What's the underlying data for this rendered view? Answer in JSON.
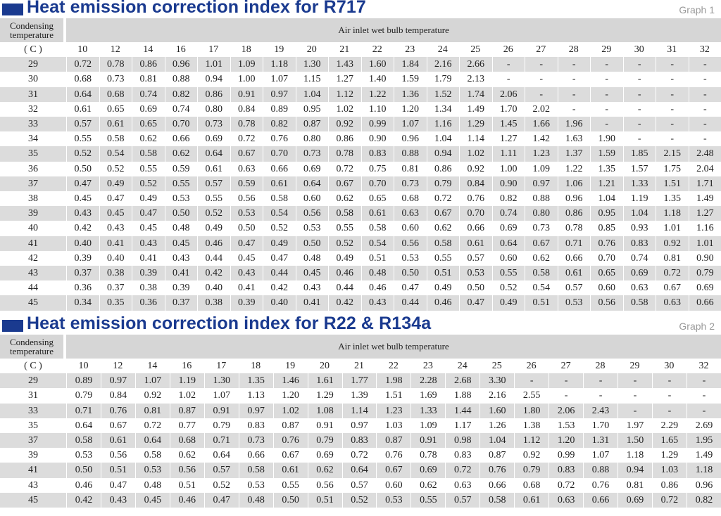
{
  "tables": [
    {
      "title": "Heat emission correction index for R717",
      "graph_label": "Graph 1",
      "row_header": "Condensing temperature",
      "col_header": "Air inlet wet bulb temperature",
      "unit": "( C )",
      "columns": [
        "10",
        "12",
        "14",
        "16",
        "17",
        "18",
        "19",
        "20",
        "21",
        "22",
        "23",
        "24",
        "25",
        "26",
        "27",
        "28",
        "29",
        "30",
        "31",
        "32"
      ],
      "rows": [
        {
          "t": "29",
          "v": [
            "0.72",
            "0.78",
            "0.86",
            "0.96",
            "1.01",
            "1.09",
            "1.18",
            "1.30",
            "1.43",
            "1.60",
            "1.84",
            "2.16",
            "2.66",
            "-",
            "-",
            "-",
            "-",
            "-",
            "-",
            "-"
          ]
        },
        {
          "t": "30",
          "v": [
            "0.68",
            "0.73",
            "0.81",
            "0.88",
            "0.94",
            "1.00",
            "1.07",
            "1.15",
            "1.27",
            "1.40",
            "1.59",
            "1.79",
            "2.13",
            "-",
            "-",
            "-",
            "-",
            "-",
            "-",
            "-"
          ]
        },
        {
          "t": "31",
          "v": [
            "0.64",
            "0.68",
            "0.74",
            "0.82",
            "0.86",
            "0.91",
            "0.97",
            "1.04",
            "1.12",
            "1.22",
            "1.36",
            "1.52",
            "1.74",
            "2.06",
            "-",
            "-",
            "-",
            "-",
            "-",
            "-"
          ]
        },
        {
          "t": "32",
          "v": [
            "0.61",
            "0.65",
            "0.69",
            "0.74",
            "0.80",
            "0.84",
            "0.89",
            "0.95",
            "1.02",
            "1.10",
            "1.20",
            "1.34",
            "1.49",
            "1.70",
            "2.02",
            "-",
            "-",
            "-",
            "-",
            "-"
          ]
        },
        {
          "t": "33",
          "v": [
            "0.57",
            "0.61",
            "0.65",
            "0.70",
            "0.73",
            "0.78",
            "0.82",
            "0.87",
            "0.92",
            "0.99",
            "1.07",
            "1.16",
            "1.29",
            "1.45",
            "1.66",
            "1.96",
            "-",
            "-",
            "-",
            "-"
          ]
        },
        {
          "t": "34",
          "v": [
            "0.55",
            "0.58",
            "0.62",
            "0.66",
            "0.69",
            "0.72",
            "0.76",
            "0.80",
            "0.86",
            "0.90",
            "0.96",
            "1.04",
            "1.14",
            "1.27",
            "1.42",
            "1.63",
            "1.90",
            "-",
            "-",
            "-"
          ]
        },
        {
          "t": "35",
          "v": [
            "0.52",
            "0.54",
            "0.58",
            "0.62",
            "0.64",
            "0.67",
            "0.70",
            "0.73",
            "0.78",
            "0.83",
            "0.88",
            "0.94",
            "1.02",
            "1.11",
            "1.23",
            "1.37",
            "1.59",
            "1.85",
            "2.15",
            "2.48"
          ]
        },
        {
          "t": "36",
          "v": [
            "0.50",
            "0.52",
            "0.55",
            "0.59",
            "0.61",
            "0.63",
            "0.66",
            "0.69",
            "0.72",
            "0.75",
            "0.81",
            "0.86",
            "0.92",
            "1.00",
            "1.09",
            "1.22",
            "1.35",
            "1.57",
            "1.75",
            "2.04"
          ]
        },
        {
          "t": "37",
          "v": [
            "0.47",
            "0.49",
            "0.52",
            "0.55",
            "0.57",
            "0.59",
            "0.61",
            "0.64",
            "0.67",
            "0.70",
            "0.73",
            "0.79",
            "0.84",
            "0.90",
            "0.97",
            "1.06",
            "1.21",
            "1.33",
            "1.51",
            "1.71"
          ]
        },
        {
          "t": "38",
          "v": [
            "0.45",
            "0.47",
            "0.49",
            "0.53",
            "0.55",
            "0.56",
            "0.58",
            "0.60",
            "0.62",
            "0.65",
            "0.68",
            "0.72",
            "0.76",
            "0.82",
            "0.88",
            "0.96",
            "1.04",
            "1.19",
            "1.35",
            "1.49"
          ]
        },
        {
          "t": "39",
          "v": [
            "0.43",
            "0.45",
            "0.47",
            "0.50",
            "0.52",
            "0.53",
            "0.54",
            "0.56",
            "0.58",
            "0.61",
            "0.63",
            "0.67",
            "0.70",
            "0.74",
            "0.80",
            "0.86",
            "0.95",
            "1.04",
            "1.18",
            "1.27"
          ]
        },
        {
          "t": "40",
          "v": [
            "0.42",
            "0.43",
            "0.45",
            "0.48",
            "0.49",
            "0.50",
            "0.52",
            "0.53",
            "0.55",
            "0.58",
            "0.60",
            "0.62",
            "0.66",
            "0.69",
            "0.73",
            "0.78",
            "0.85",
            "0.93",
            "1.01",
            "1.16"
          ]
        },
        {
          "t": "41",
          "v": [
            "0.40",
            "0.41",
            "0.43",
            "0.45",
            "0.46",
            "0.47",
            "0.49",
            "0.50",
            "0.52",
            "0.54",
            "0.56",
            "0.58",
            "0.61",
            "0.64",
            "0.67",
            "0.71",
            "0.76",
            "0.83",
            "0.92",
            "1.01"
          ]
        },
        {
          "t": "42",
          "v": [
            "0.39",
            "0.40",
            "0.41",
            "0.43",
            "0.44",
            "0.45",
            "0.47",
            "0.48",
            "0.49",
            "0.51",
            "0.53",
            "0.55",
            "0.57",
            "0.60",
            "0.62",
            "0.66",
            "0.70",
            "0.74",
            "0.81",
            "0.90"
          ]
        },
        {
          "t": "43",
          "v": [
            "0.37",
            "0.38",
            "0.39",
            "0.41",
            "0.42",
            "0.43",
            "0.44",
            "0.45",
            "0.46",
            "0.48",
            "0.50",
            "0.51",
            "0.53",
            "0.55",
            "0.58",
            "0.61",
            "0.65",
            "0.69",
            "0.72",
            "0.79"
          ]
        },
        {
          "t": "44",
          "v": [
            "0.36",
            "0.37",
            "0.38",
            "0.39",
            "0.40",
            "0.41",
            "0.42",
            "0.43",
            "0.44",
            "0.46",
            "0.47",
            "0.49",
            "0.50",
            "0.52",
            "0.54",
            "0.57",
            "0.60",
            "0.63",
            "0.67",
            "0.69"
          ]
        },
        {
          "t": "45",
          "v": [
            "0.34",
            "0.35",
            "0.36",
            "0.37",
            "0.38",
            "0.39",
            "0.40",
            "0.41",
            "0.42",
            "0.43",
            "0.44",
            "0.46",
            "0.47",
            "0.49",
            "0.51",
            "0.53",
            "0.56",
            "0.58",
            "0.63",
            "0.66"
          ]
        }
      ]
    },
    {
      "title": "Heat emission correction index for R22 & R134a",
      "graph_label": "Graph 2",
      "row_header": "Condensing temperature",
      "col_header": "Air inlet wet bulb temperature",
      "unit": "( C )",
      "columns": [
        "10",
        "12",
        "14",
        "16",
        "17",
        "18",
        "19",
        "20",
        "21",
        "22",
        "23",
        "24",
        "25",
        "26",
        "27",
        "28",
        "29",
        "30",
        "32"
      ],
      "rows": [
        {
          "t": "29",
          "v": [
            "0.89",
            "0.97",
            "1.07",
            "1.19",
            "1.30",
            "1.35",
            "1.46",
            "1.61",
            "1.77",
            "1.98",
            "2.28",
            "2.68",
            "3.30",
            "-",
            "-",
            "-",
            "-",
            "-",
            "-"
          ]
        },
        {
          "t": "31",
          "v": [
            "0.79",
            "0.84",
            "0.92",
            "1.02",
            "1.07",
            "1.13",
            "1.20",
            "1.29",
            "1.39",
            "1.51",
            "1.69",
            "1.88",
            "2.16",
            "2.55",
            "-",
            "-",
            "-",
            "-",
            "-"
          ]
        },
        {
          "t": "33",
          "v": [
            "0.71",
            "0.76",
            "0.81",
            "0.87",
            "0.91",
            "0.97",
            "1.02",
            "1.08",
            "1.14",
            "1.23",
            "1.33",
            "1.44",
            "1.60",
            "1.80",
            "2.06",
            "2.43",
            "-",
            "-",
            "-"
          ]
        },
        {
          "t": "35",
          "v": [
            "0.64",
            "0.67",
            "0.72",
            "0.77",
            "0.79",
            "0.83",
            "0.87",
            "0.91",
            "0.97",
            "1.03",
            "1.09",
            "1.17",
            "1.26",
            "1.38",
            "1.53",
            "1.70",
            "1.97",
            "2.29",
            "2.69"
          ]
        },
        {
          "t": "37",
          "v": [
            "0.58",
            "0.61",
            "0.64",
            "0.68",
            "0.71",
            "0.73",
            "0.76",
            "0.79",
            "0.83",
            "0.87",
            "0.91",
            "0.98",
            "1.04",
            "1.12",
            "1.20",
            "1.31",
            "1.50",
            "1.65",
            "1.95"
          ]
        },
        {
          "t": "39",
          "v": [
            "0.53",
            "0.56",
            "0.58",
            "0.62",
            "0.64",
            "0.66",
            "0.67",
            "0.69",
            "0.72",
            "0.76",
            "0.78",
            "0.83",
            "0.87",
            "0.92",
            "0.99",
            "1.07",
            "1.18",
            "1.29",
            "1.49"
          ]
        },
        {
          "t": "41",
          "v": [
            "0.50",
            "0.51",
            "0.53",
            "0.56",
            "0.57",
            "0.58",
            "0.61",
            "0.62",
            "0.64",
            "0.67",
            "0.69",
            "0.72",
            "0.76",
            "0.79",
            "0.83",
            "0.88",
            "0.94",
            "1.03",
            "1.18"
          ]
        },
        {
          "t": "43",
          "v": [
            "0.46",
            "0.47",
            "0.48",
            "0.51",
            "0.52",
            "0.53",
            "0.55",
            "0.56",
            "0.57",
            "0.60",
            "0.62",
            "0.63",
            "0.66",
            "0.68",
            "0.72",
            "0.76",
            "0.81",
            "0.86",
            "0.96"
          ]
        },
        {
          "t": "45",
          "v": [
            "0.42",
            "0.43",
            "0.45",
            "0.46",
            "0.47",
            "0.48",
            "0.50",
            "0.51",
            "0.52",
            "0.53",
            "0.55",
            "0.57",
            "0.58",
            "0.61",
            "0.63",
            "0.66",
            "0.69",
            "0.72",
            "0.82"
          ]
        }
      ]
    }
  ]
}
